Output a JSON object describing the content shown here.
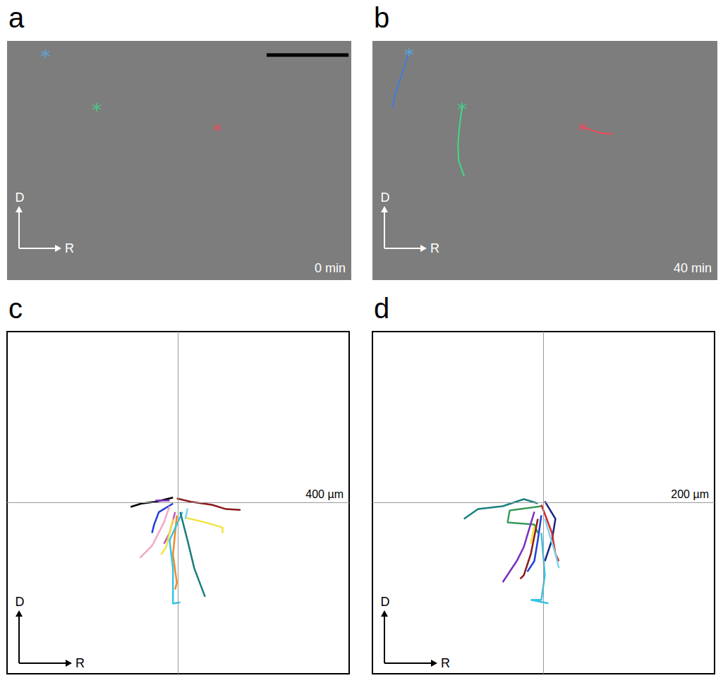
{
  "chart_data": [
    {
      "type": "micrograph",
      "panel": "a",
      "time_label": "0 min",
      "xlim": [
        0,
        100
      ],
      "ylim": [
        0,
        100
      ],
      "tick_labels": false,
      "grid": false,
      "direction_labels": {
        "up": "D",
        "right": "R"
      },
      "scale_bar": {
        "x": [
          75.4,
          99.2
        ],
        "y": 5.9
      },
      "marker": "asterisk",
      "markers": [
        {
          "color": "#5aa9e6",
          "x": 11.1,
          "y": 5.3
        },
        {
          "color": "#3ddc84",
          "x": 26.0,
          "y": 27.7
        },
        {
          "color": "#ef4a5a",
          "x": 61.1,
          "y": 36.3
        }
      ],
      "series": []
    },
    {
      "type": "micrograph",
      "panel": "b",
      "time_label": "40 min",
      "xlim": [
        0,
        100
      ],
      "ylim": [
        0,
        100
      ],
      "tick_labels": false,
      "grid": false,
      "direction_labels": {
        "up": "D",
        "right": "R"
      },
      "marker": "asterisk",
      "markers": [
        {
          "color": "#5aa9e6",
          "x": 10.6,
          "y": 4.7
        },
        {
          "color": "#3ddc84",
          "x": 26.0,
          "y": 27.4
        },
        {
          "color": "#ef4a5a",
          "x": 60.9,
          "y": 36.0
        }
      ],
      "series": [
        {
          "color": "#3f7be0",
          "x": [
            10.6,
            9.2,
            7.8,
            6.6,
            5.9
          ],
          "values": [
            4.7,
            11,
            17,
            22,
            27.7
          ]
        },
        {
          "color": "#3ddc84",
          "x": [
            26.0,
            25.3,
            24.8,
            25.0,
            26.2,
            26.6
          ],
          "values": [
            27.4,
            35,
            43,
            50,
            55,
            56.6
          ]
        },
        {
          "color": "#ef4a5a",
          "x": [
            60.9,
            63,
            66,
            69.5
          ],
          "values": [
            36.0,
            37,
            38.5,
            38.9
          ]
        }
      ]
    },
    {
      "type": "line",
      "panel": "c",
      "scale_label": "400 µm",
      "xlim": [
        -400,
        400
      ],
      "ylim": [
        -400,
        400
      ],
      "tick_labels": false,
      "grid": false,
      "reference_lines": {
        "x": 0,
        "y": 0
      },
      "direction_labels": {
        "up": "D",
        "right": "R"
      },
      "series": [
        {
          "color": "#000000",
          "x": [
            -12,
            -53,
            -86,
            -111
          ],
          "values": [
            12,
            2,
            -2,
            -10
          ]
        },
        {
          "color": "#7b2fbe",
          "x": [
            -20,
            -53
          ],
          "values": [
            5,
            5
          ]
        },
        {
          "color": "#8b1a1a",
          "x": [
            -3,
            30,
            79,
            112,
            146
          ],
          "values": [
            10,
            2,
            -5,
            -15,
            -17
          ]
        },
        {
          "color": "#1f3fd6",
          "x": [
            -12,
            -45,
            -56,
            -61
          ],
          "values": [
            -2,
            -22,
            -51,
            -71
          ]
        },
        {
          "color": "#f4a6c8",
          "x": [
            -20,
            -33,
            -61,
            -89
          ],
          "values": [
            -8,
            -46,
            -101,
            -129
          ]
        },
        {
          "color": "#c05ac0",
          "x": [
            -7,
            -20,
            -33
          ],
          "values": [
            -22,
            -71,
            -96
          ]
        },
        {
          "color": "#f2e341",
          "x": [
            -12,
            -28,
            -40
          ],
          "values": [
            -38,
            -104,
            -121
          ]
        },
        {
          "color": "#f2e341",
          "x": [
            17,
            63,
            104,
            104
          ],
          "values": [
            -35,
            -46,
            -58,
            -71
          ]
        },
        {
          "color": "#f08a24",
          "x": [
            -3,
            -12,
            -3,
            -7
          ],
          "values": [
            -30,
            -121,
            -187,
            -203
          ]
        },
        {
          "color": "#35c4e8",
          "x": [
            10,
            -20,
            -12,
            -12,
            5
          ],
          "values": [
            -22,
            -88,
            -154,
            -236,
            -233
          ]
        },
        {
          "color": "#1a7d7d",
          "x": [
            5,
            22,
            38,
            63
          ],
          "values": [
            -22,
            -88,
            -154,
            -220
          ]
        },
        {
          "color": "#7fd3f0",
          "x": [
            22,
            17
          ],
          "values": [
            -13,
            -38
          ]
        }
      ]
    },
    {
      "type": "line",
      "panel": "d",
      "scale_label": "200 µm",
      "xlim": [
        -200,
        200
      ],
      "ylim": [
        -200,
        200
      ],
      "tick_labels": false,
      "grid": false,
      "reference_lines": {
        "x": 0,
        "y": 0
      },
      "direction_labels": {
        "up": "D",
        "right": "R"
      },
      "series": [
        {
          "color": "#1a8080",
          "x": [
            -6.6,
            -23,
            -47.7,
            -76.5,
            -93
          ],
          "values": [
            -0.8,
            4.1,
            -4.1,
            -7.4,
            -18.9
          ]
        },
        {
          "color": "#3a9a5a",
          "x": [
            -2.5,
            -39.5,
            -42,
            -10.7,
            -6.6
          ],
          "values": [
            -4.1,
            -9.1,
            -23,
            -25.5,
            -35.4
          ]
        },
        {
          "color": "#1a237e",
          "x": [
            1.6,
            14,
            9.9,
            1.6
          ],
          "values": [
            1.6,
            -18.9,
            -43.6,
            -68.3
          ]
        },
        {
          "color": "#d62828",
          "x": [
            -2.5,
            9.9,
            14,
            18
          ],
          "values": [
            -2.5,
            -35.4,
            -60,
            -68.3
          ]
        },
        {
          "color": "#7b2fbe",
          "x": [
            -10.7,
            -23,
            -31.3,
            -47.7
          ],
          "values": [
            -10.7,
            -51.8,
            -68.3,
            -93
          ]
        },
        {
          "color": "#8b1a1a",
          "x": [
            -6.6,
            -14.8,
            -23,
            -27.2
          ],
          "values": [
            -18.9,
            -60,
            -84.8,
            -88.9
          ]
        },
        {
          "color": "#1f3fd6",
          "x": [
            -2.5,
            -6.6,
            -10.7,
            -18.9
          ],
          "values": [
            -14.8,
            -43.6,
            -68.3,
            -80.7
          ]
        },
        {
          "color": "#f2e341",
          "x": [
            -10.7,
            -14.8
          ],
          "values": [
            -27.2,
            -47.7
          ]
        },
        {
          "color": "#7fd3f0",
          "x": [
            1.6,
            14,
            18
          ],
          "values": [
            -18.9,
            -60,
            -76.5
          ]
        },
        {
          "color": "#35c4e8",
          "x": [
            -2.5,
            1.6,
            -2.5,
            -14.8,
            5.8
          ],
          "values": [
            -35.4,
            -84.8,
            -113.6,
            -113.6,
            -117.7
          ]
        }
      ]
    }
  ]
}
